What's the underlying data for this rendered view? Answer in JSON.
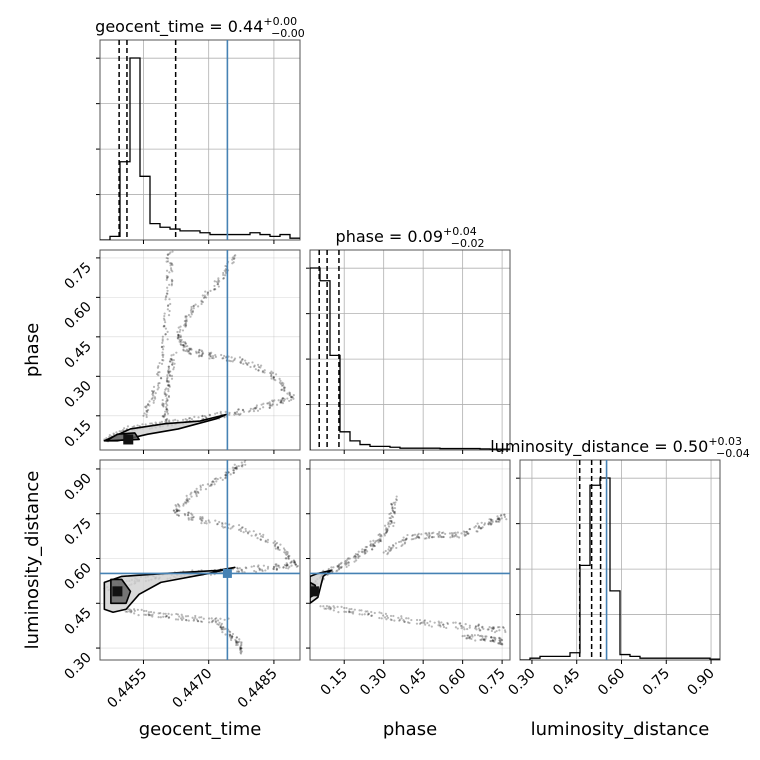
{
  "colors": {
    "truth": "#4682b4",
    "hist": "#000000",
    "grid": "#b0b0b0",
    "samples": "#000000",
    "contour_fill_inner": "#111111",
    "contour_fill_mid": "#5a5a5a",
    "contour_fill_outer": "#cfcfcf"
  },
  "chart_data": {
    "type": "corner",
    "parameters": [
      {
        "name": "geocent_time",
        "label": "geocent_time",
        "title_prefix": "geocent_time = 0.44",
        "title_plus": "+0.00",
        "title_minus": "−0.00",
        "range": [
          0.4445,
          0.4491
        ],
        "ticks": [
          0.4455,
          0.447,
          0.4485
        ],
        "tick_labels": [
          "0.4455",
          "0.4470",
          "0.4485"
        ],
        "truth": 0.44743,
        "quantiles": [
          0.44494,
          0.44512,
          0.44624
        ],
        "hist_edges_start": 0.4445,
        "hist_bin_width": 0.00023,
        "hist_counts": [
          0,
          0.02,
          0.43,
          1.0,
          0.35,
          0.09,
          0.07,
          0.06,
          0.05,
          0.05,
          0.04,
          0.03,
          0.03,
          0.03,
          0.03,
          0.04,
          0.03,
          0.02,
          0.03,
          0.01
        ]
      },
      {
        "name": "phase",
        "label": "phase",
        "title_prefix": "phase = 0.09",
        "title_plus": "+0.04",
        "title_minus": "−0.02",
        "range": [
          0.02,
          0.78
        ],
        "ticks": [
          0.15,
          0.3,
          0.45,
          0.6,
          0.75
        ],
        "tick_labels": [
          "0.15",
          "0.30",
          "0.45",
          "0.60",
          "0.75"
        ],
        "truth": null,
        "quantiles": [
          0.055,
          0.085,
          0.13
        ],
        "hist_edges_start": 0.02,
        "hist_bin_width": 0.038,
        "hist_counts": [
          1.0,
          0.93,
          0.52,
          0.1,
          0.05,
          0.03,
          0.02,
          0.02,
          0.015,
          0.01,
          0.01,
          0.01,
          0.01,
          0.008,
          0.008,
          0.008,
          0.008,
          0.006,
          0.005,
          0.005
        ]
      },
      {
        "name": "luminosity_distance",
        "label": "luminosity_distance",
        "title_prefix": "luminosity_distance = 0.50",
        "title_plus": "+0.03",
        "title_minus": "−0.04",
        "range": [
          0.26,
          0.93
        ],
        "ticks": [
          0.3,
          0.45,
          0.6,
          0.75,
          0.9
        ],
        "tick_labels": [
          "0.30",
          "0.45",
          "0.60",
          "0.75",
          "0.90"
        ],
        "truth": 0.55,
        "quantiles": [
          0.46,
          0.5,
          0.53
        ],
        "hist_edges_start": 0.26,
        "hist_bin_width": 0.0335,
        "hist_counts": [
          0,
          0.01,
          0.02,
          0.02,
          0.02,
          0.04,
          0.52,
          0.96,
          1.0,
          0.38,
          0.03,
          0.02,
          0.01,
          0.01,
          0.01,
          0.01,
          0.01,
          0.01,
          0.01,
          0.005
        ]
      }
    ],
    "samples_2d": [
      {
        "x_param": "geocent_time",
        "y_param": "phase",
        "contours": [
          [
            [
              0.4446,
              0.055
            ],
            [
              0.4448,
              0.07
            ],
            [
              0.4452,
              0.1
            ],
            [
              0.446,
              0.12
            ],
            [
              0.4468,
              0.13
            ],
            [
              0.4474,
              0.155
            ],
            [
              0.4472,
              0.14
            ],
            [
              0.4463,
              0.1
            ],
            [
              0.4456,
              0.08
            ],
            [
              0.4452,
              0.065
            ],
            [
              0.4449,
              0.055
            ]
          ],
          [
            [
              0.44465,
              0.055
            ],
            [
              0.4449,
              0.08
            ],
            [
              0.4453,
              0.085
            ],
            [
              0.4454,
              0.06
            ]
          ]
        ],
        "squares": [
          [
            0.44515,
            0.06
          ]
        ],
        "trails": [
          [
            [
              0.4446,
              0.06
            ],
            [
              0.4452,
              0.1
            ],
            [
              0.446,
              0.12
            ],
            [
              0.4468,
              0.14
            ],
            [
              0.4476,
              0.16
            ],
            [
              0.4484,
              0.19
            ],
            [
              0.4489,
              0.22
            ]
          ],
          [
            [
              0.4489,
              0.22
            ],
            [
              0.4485,
              0.3
            ],
            [
              0.4478,
              0.36
            ],
            [
              0.447,
              0.38
            ],
            [
              0.4465,
              0.4
            ],
            [
              0.4463,
              0.45
            ],
            [
              0.4466,
              0.55
            ],
            [
              0.4472,
              0.65
            ],
            [
              0.4476,
              0.76
            ]
          ],
          [
            [
              0.4455,
              0.15
            ],
            [
              0.4458,
              0.25
            ],
            [
              0.446,
              0.45
            ],
            [
              0.4461,
              0.65
            ],
            [
              0.4461,
              0.78
            ]
          ],
          [
            [
              0.446,
              0.12
            ],
            [
              0.446,
              0.2
            ],
            [
              0.4461,
              0.3
            ],
            [
              0.4462,
              0.38
            ]
          ]
        ]
      },
      {
        "x_param": "geocent_time",
        "y_param": "luminosity_distance",
        "contours": [
          [
            [
              0.4446,
              0.43
            ],
            [
              0.4446,
              0.52
            ],
            [
              0.445,
              0.54
            ],
            [
              0.446,
              0.55
            ],
            [
              0.4472,
              0.56
            ],
            [
              0.4476,
              0.57
            ],
            [
              0.447,
              0.55
            ],
            [
              0.4459,
              0.52
            ],
            [
              0.4454,
              0.48
            ],
            [
              0.4451,
              0.43
            ],
            [
              0.4448,
              0.42
            ]
          ],
          [
            [
              0.44475,
              0.45
            ],
            [
              0.44475,
              0.53
            ],
            [
              0.445,
              0.53
            ],
            [
              0.4452,
              0.49
            ],
            [
              0.4451,
              0.45
            ]
          ]
        ],
        "squares": [
          [
            0.4449,
            0.49
          ]
        ],
        "trails": [
          [
            [
              0.4446,
              0.5
            ],
            [
              0.4455,
              0.53
            ],
            [
              0.4465,
              0.55
            ],
            [
              0.4476,
              0.56
            ],
            [
              0.4485,
              0.57
            ],
            [
              0.449,
              0.58
            ]
          ],
          [
            [
              0.449,
              0.58
            ],
            [
              0.4486,
              0.64
            ],
            [
              0.4478,
              0.7
            ],
            [
              0.4468,
              0.73
            ],
            [
              0.4462,
              0.76
            ],
            [
              0.4467,
              0.82
            ],
            [
              0.4474,
              0.88
            ],
            [
              0.4478,
              0.92
            ]
          ],
          [
            [
              0.445,
              0.43
            ],
            [
              0.4458,
              0.41
            ],
            [
              0.4466,
              0.4
            ],
            [
              0.4474,
              0.39
            ]
          ],
          [
            [
              0.4472,
              0.38
            ],
            [
              0.4476,
              0.33
            ],
            [
              0.4478,
              0.29
            ]
          ]
        ]
      },
      {
        "x_param": "phase",
        "y_param": "luminosity_distance",
        "contours": [
          [
            [
              0.02,
              0.45
            ],
            [
              0.02,
              0.54
            ],
            [
              0.05,
              0.55
            ],
            [
              0.1,
              0.56
            ],
            [
              0.07,
              0.54
            ],
            [
              0.05,
              0.47
            ]
          ],
          [
            [
              0.02,
              0.47
            ],
            [
              0.02,
              0.52
            ],
            [
              0.04,
              0.51
            ],
            [
              0.04,
              0.48
            ]
          ]
        ],
        "squares": [
          [
            0.035,
            0.49
          ]
        ],
        "trails": [
          [
            [
              0.02,
              0.5
            ],
            [
              0.08,
              0.55
            ],
            [
              0.15,
              0.58
            ],
            [
              0.22,
              0.62
            ],
            [
              0.28,
              0.66
            ],
            [
              0.33,
              0.72
            ],
            [
              0.34,
              0.8
            ]
          ],
          [
            [
              0.3,
              0.62
            ],
            [
              0.4,
              0.67
            ],
            [
              0.5,
              0.68
            ],
            [
              0.6,
              0.68
            ],
            [
              0.7,
              0.72
            ],
            [
              0.76,
              0.74
            ]
          ],
          [
            [
              0.06,
              0.44
            ],
            [
              0.2,
              0.42
            ],
            [
              0.35,
              0.4
            ],
            [
              0.5,
              0.38
            ],
            [
              0.65,
              0.37
            ],
            [
              0.76,
              0.36
            ]
          ],
          [
            [
              0.6,
              0.34
            ],
            [
              0.7,
              0.33
            ],
            [
              0.76,
              0.32
            ]
          ]
        ]
      }
    ],
    "truth_points": [
      {
        "x_param": "geocent_time",
        "y_param": "luminosity_distance",
        "x": 0.44743,
        "y": 0.55
      }
    ]
  }
}
